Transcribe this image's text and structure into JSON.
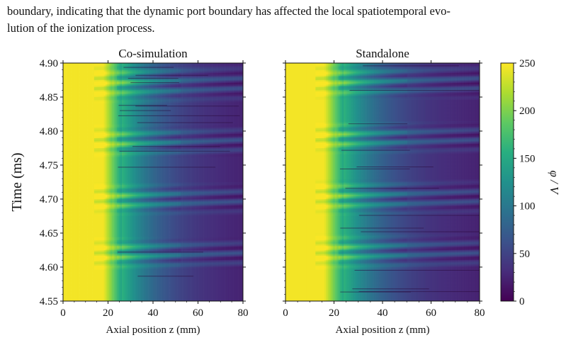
{
  "text": {
    "line1": "boundary, indicating that the dynamic port boundary has affected the local spatiotemporal evo-",
    "line2": "lution of the ionization process."
  },
  "colorscale": [
    "#440154",
    "#472d7b",
    "#3b528b",
    "#2c728e",
    "#21918c",
    "#28ae80",
    "#5ec962",
    "#addc30",
    "#fde725"
  ],
  "chart_data": [
    {
      "type": "heatmap",
      "title": "Co-simulation",
      "xlabel": "Axial position z (mm)",
      "ylabel": "Time (ms)",
      "xlim": [
        0,
        80
      ],
      "ylim": [
        4.55,
        4.9
      ],
      "xticks": [
        "0",
        "20",
        "40",
        "60",
        "80"
      ],
      "yticks": [
        "4.55",
        "4.60",
        "4.65",
        "4.70",
        "4.75",
        "4.80",
        "4.85",
        "4.90"
      ],
      "plateau_end_z": 22,
      "burst_windows_ms": [
        [
          4.595,
          4.645
        ],
        [
          4.675,
          4.725
        ],
        [
          4.76,
          4.81
        ],
        [
          4.84,
          4.9
        ]
      ]
    },
    {
      "type": "heatmap",
      "title": "Standalone",
      "xlabel": "Axial position z (mm)",
      "ylabel": "",
      "xlim": [
        0,
        80
      ],
      "ylim": [
        4.55,
        4.9
      ],
      "xticks": [
        "0",
        "20",
        "40",
        "60",
        "80"
      ],
      "yticks": [],
      "plateau_end_z": 20,
      "burst_windows_ms": [
        [
          4.595,
          4.65
        ],
        [
          4.675,
          4.73
        ],
        [
          4.765,
          4.815
        ],
        [
          4.845,
          4.9
        ]
      ]
    }
  ],
  "colorbar": {
    "label": "φ / V",
    "range": [
      0,
      250
    ],
    "ticks": [
      "0",
      "50",
      "100",
      "150",
      "200",
      "250"
    ]
  }
}
